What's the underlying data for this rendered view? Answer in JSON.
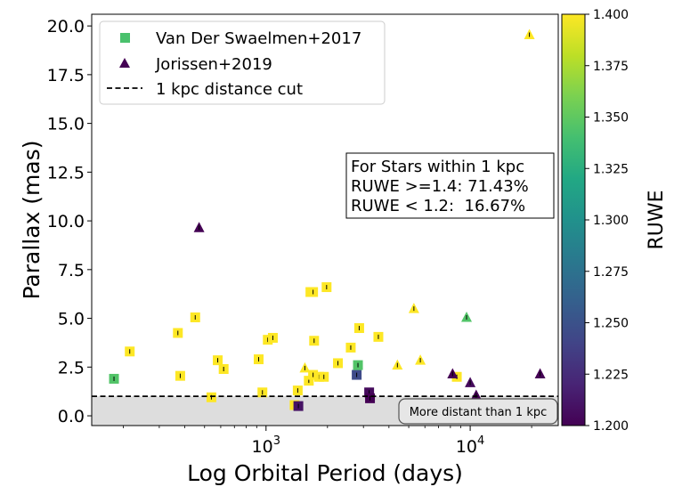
{
  "chart_data": {
    "type": "scatter",
    "xscale": "log",
    "xlabel": "Log Orbital Period (days)",
    "ylabel": "Parallax (mas)",
    "xlim": [
      140,
      27000
    ],
    "ylim": [
      -0.5,
      20.6
    ],
    "x_ticks": [
      {
        "value": 1000,
        "base": "10",
        "exp": "3"
      },
      {
        "value": 10000,
        "base": "10",
        "exp": "4"
      }
    ],
    "y_ticks": [
      {
        "value": 0.0,
        "label": "0.0"
      },
      {
        "value": 2.5,
        "label": "2.5"
      },
      {
        "value": 5.0,
        "label": "5.0"
      },
      {
        "value": 7.5,
        "label": "7.5"
      },
      {
        "value": 10.0,
        "label": "10.0"
      },
      {
        "value": 12.5,
        "label": "12.5"
      },
      {
        "value": 15.0,
        "label": "15.0"
      },
      {
        "value": 17.5,
        "label": "17.5"
      },
      {
        "value": 20.0,
        "label": "20.0"
      }
    ],
    "distance_cut": {
      "value": 1.0,
      "label": "1 kpc distance cut"
    },
    "shaded_region": {
      "label": "More distant than 1 kpc"
    },
    "annotation": {
      "lines": [
        "For Stars within 1 kpc",
        "RUWE >=1.4: 71.43%",
        "RUWE < 1.2:  16.67%"
      ]
    },
    "colorbar": {
      "label": "RUWE",
      "range": [
        1.2,
        1.4
      ],
      "ticks": [
        "1.200",
        "1.225",
        "1.250",
        "1.275",
        "1.300",
        "1.325",
        "1.350",
        "1.375",
        "1.400"
      ]
    },
    "legend": {
      "placement": "top-left",
      "entries": [
        {
          "label": "Van Der Swaelmen+2017",
          "marker": "square",
          "color": "#4ac16d"
        },
        {
          "label": "Jorissen+2019",
          "marker": "triangle",
          "color": "#440154"
        },
        {
          "label": "1 kpc distance cut",
          "marker": "dash",
          "color": "#000000"
        }
      ]
    },
    "series": [
      {
        "name": "Van Der Swaelmen+2017",
        "marker": "square",
        "points": [
          {
            "x": 180,
            "y": 1.9,
            "ruwe": 1.345
          },
          {
            "x": 215,
            "y": 3.3,
            "ruwe": 1.4
          },
          {
            "x": 370,
            "y": 4.25,
            "ruwe": 1.4
          },
          {
            "x": 380,
            "y": 2.05,
            "ruwe": 1.4
          },
          {
            "x": 450,
            "y": 5.05,
            "ruwe": 1.4
          },
          {
            "x": 540,
            "y": 0.95,
            "ruwe": 1.4
          },
          {
            "x": 580,
            "y": 2.85,
            "ruwe": 1.4
          },
          {
            "x": 620,
            "y": 2.4,
            "ruwe": 1.4
          },
          {
            "x": 920,
            "y": 2.9,
            "ruwe": 1.4
          },
          {
            "x": 960,
            "y": 1.2,
            "ruwe": 1.4
          },
          {
            "x": 1020,
            "y": 3.9,
            "ruwe": 1.4
          },
          {
            "x": 1080,
            "y": 4.0,
            "ruwe": 1.4
          },
          {
            "x": 1380,
            "y": 0.55,
            "ruwe": 1.4
          },
          {
            "x": 1430,
            "y": 1.3,
            "ruwe": 1.4
          },
          {
            "x": 1440,
            "y": 0.5,
            "ruwe": 1.21
          },
          {
            "x": 1620,
            "y": 1.8,
            "ruwe": 1.4
          },
          {
            "x": 1650,
            "y": 6.35,
            "ruwe": 1.4
          },
          {
            "x": 1700,
            "y": 6.35,
            "ruwe": 1.4
          },
          {
            "x": 1700,
            "y": 2.1,
            "ruwe": 1.4
          },
          {
            "x": 1720,
            "y": 3.85,
            "ruwe": 1.4
          },
          {
            "x": 1820,
            "y": 2.0,
            "ruwe": 1.4
          },
          {
            "x": 1920,
            "y": 2.0,
            "ruwe": 1.4
          },
          {
            "x": 1980,
            "y": 6.6,
            "ruwe": 1.4
          },
          {
            "x": 2250,
            "y": 2.7,
            "ruwe": 1.4
          },
          {
            "x": 2600,
            "y": 3.5,
            "ruwe": 1.4
          },
          {
            "x": 2780,
            "y": 2.1,
            "ruwe": 1.245
          },
          {
            "x": 2820,
            "y": 2.6,
            "ruwe": 1.345
          },
          {
            "x": 2860,
            "y": 4.5,
            "ruwe": 1.4
          },
          {
            "x": 3200,
            "y": 1.2,
            "ruwe": 1.205
          },
          {
            "x": 3230,
            "y": 0.9,
            "ruwe": 1.2
          },
          {
            "x": 3550,
            "y": 4.05,
            "ruwe": 1.4
          },
          {
            "x": 8600,
            "y": 2.0,
            "ruwe": 1.4
          }
        ]
      },
      {
        "name": "Jorissen+2019",
        "marker": "triangle",
        "points": [
          {
            "x": 470,
            "y": 9.65,
            "ruwe": 1.2
          },
          {
            "x": 1550,
            "y": 2.45,
            "ruwe": 1.4
          },
          {
            "x": 4400,
            "y": 2.6,
            "ruwe": 1.4
          },
          {
            "x": 5300,
            "y": 5.5,
            "ruwe": 1.4
          },
          {
            "x": 5700,
            "y": 2.85,
            "ruwe": 1.4
          },
          {
            "x": 8200,
            "y": 2.15,
            "ruwe": 1.2
          },
          {
            "x": 9600,
            "y": 5.05,
            "ruwe": 1.345
          },
          {
            "x": 10000,
            "y": 1.7,
            "ruwe": 1.205
          },
          {
            "x": 10700,
            "y": 1.05,
            "ruwe": 1.2
          },
          {
            "x": 19500,
            "y": 19.55,
            "ruwe": 1.4
          },
          {
            "x": 22000,
            "y": 2.15,
            "ruwe": 1.2
          }
        ]
      }
    ]
  }
}
